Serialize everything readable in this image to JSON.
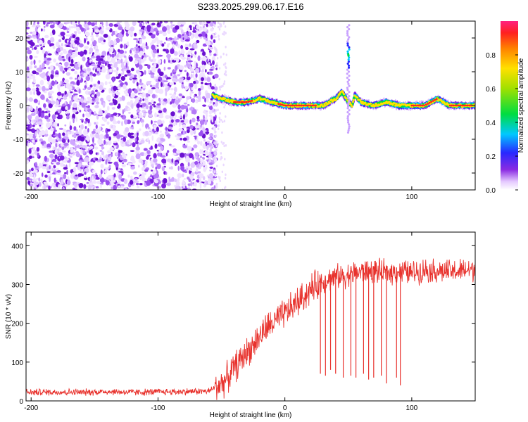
{
  "title": "S233.2025.299.06.17.E16",
  "chart_data": [
    {
      "type": "heatmap",
      "name": "spectrogram",
      "xlabel": "Height of straight line (km)",
      "ylabel": "Frequency (Hz)",
      "xlim": [
        -204,
        150
      ],
      "ylim": [
        -25,
        25
      ],
      "xticks": [
        -200,
        -100,
        0,
        100
      ],
      "xtick_labels": [
        "-200",
        "-100",
        "0",
        "100"
      ],
      "yticks": [
        -20,
        -10,
        0,
        10,
        20
      ],
      "ytick_labels": [
        "-20",
        "-10",
        "0",
        "10",
        "20"
      ],
      "noise_region_km": [
        -204,
        -57
      ],
      "signal_line": {
        "description": "narrow-band trace near 0 Hz",
        "x": [
          -57,
          -50,
          -40,
          -30,
          -20,
          -10,
          0,
          10,
          20,
          30,
          40,
          45,
          50,
          53,
          55,
          60,
          70,
          80,
          90,
          100,
          110,
          120,
          130,
          140,
          150
        ],
        "y": [
          3,
          2,
          1,
          1,
          2,
          1,
          0,
          0,
          0,
          0,
          2,
          4,
          1,
          0,
          3,
          1,
          0,
          1,
          0,
          0,
          0,
          2,
          0,
          0,
          0
        ]
      },
      "spike": {
        "x": 50,
        "y": [
          0,
          25
        ],
        "peak": 15
      },
      "colorbar": {
        "label": "Normalized spectral amplitude",
        "range": [
          0.0,
          1.0
        ],
        "ticks": [
          0.0,
          0.2,
          0.4,
          0.6,
          0.8
        ],
        "tick_labels": [
          "0.0",
          "0.2",
          "0.4",
          "0.6",
          "0.8"
        ]
      }
    },
    {
      "type": "line",
      "name": "snr",
      "xlabel": "Height of straight line (km)",
      "ylabel": "SNR (10 * v/v)",
      "xlim": [
        -204,
        150
      ],
      "ylim": [
        0,
        435
      ],
      "xticks": [
        -200,
        -100,
        0,
        100
      ],
      "xtick_labels": [
        "-200",
        "-100",
        "0",
        "100"
      ],
      "yticks": [
        0,
        100,
        200,
        300,
        400
      ],
      "ytick_labels": [
        "0",
        "100",
        "200",
        "300",
        "400"
      ],
      "series": [
        {
          "name": "SNR",
          "color": "#e8322d",
          "x": [
            -204,
            -180,
            -160,
            -140,
            -120,
            -100,
            -80,
            -60,
            -50,
            -45,
            -40,
            -35,
            -30,
            -25,
            -20,
            -15,
            -10,
            -5,
            0,
            5,
            10,
            15,
            20,
            25,
            30,
            35,
            40,
            45,
            50,
            55,
            60,
            70,
            80,
            90,
            100,
            110,
            120,
            130,
            140,
            150
          ],
          "values": [
            22,
            23,
            22,
            24,
            22,
            23,
            24,
            25,
            45,
            60,
            85,
            105,
            125,
            145,
            165,
            185,
            200,
            210,
            225,
            240,
            255,
            270,
            285,
            300,
            310,
            315,
            320,
            322,
            325,
            330,
            332,
            335,
            330,
            335,
            330,
            338,
            335,
            332,
            335,
            340
          ]
        }
      ],
      "dropouts": {
        "x": [
          28,
          32,
          36,
          40,
          46,
          52,
          56,
          62,
          66,
          70,
          76,
          80,
          88,
          91
        ],
        "min": [
          70,
          65,
          80,
          70,
          60,
          65,
          60,
          70,
          55,
          60,
          65,
          45,
          60,
          40
        ]
      }
    }
  ]
}
